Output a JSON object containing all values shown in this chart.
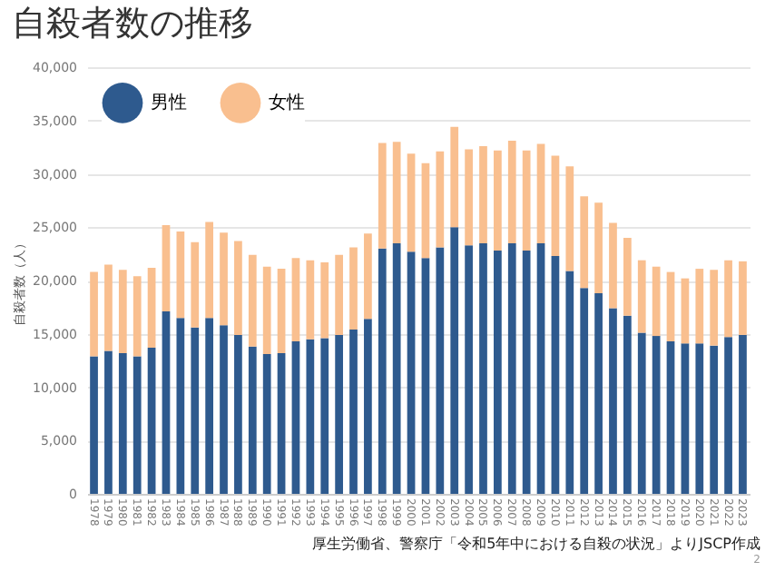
{
  "chart_data": {
    "type": "bar",
    "title": "自殺者数の推移",
    "ylabel": "自殺者数（人）",
    "stacked": true,
    "grid": "y",
    "legend": "top left",
    "categories": [
      "1978",
      "1979",
      "1980",
      "1981",
      "1982",
      "1983",
      "1984",
      "1985",
      "1986",
      "1987",
      "1988",
      "1989",
      "1990",
      "1991",
      "1992",
      "1993",
      "1994",
      "1995",
      "1996",
      "1997",
      "1998",
      "1999",
      "2000",
      "2001",
      "2002",
      "2003",
      "2004",
      "2005",
      "2006",
      "2007",
      "2008",
      "2009",
      "2010",
      "2011",
      "2012",
      "2013",
      "2014",
      "2015",
      "2016",
      "2017",
      "2018",
      "2019",
      "2020",
      "2021",
      "2022",
      "2023"
    ],
    "series": [
      {
        "name": "男性",
        "color": "#2e5a8e",
        "values": [
          12900,
          13400,
          13200,
          12900,
          13700,
          17100,
          16500,
          15600,
          16500,
          15800,
          14900,
          13800,
          13100,
          13200,
          14300,
          14500,
          14600,
          14900,
          15400,
          16400,
          23000,
          23500,
          22700,
          22100,
          23100,
          25000,
          23300,
          23500,
          22800,
          23500,
          22800,
          23500,
          22300,
          20900,
          19300,
          18800,
          17400,
          16700,
          15100,
          14800,
          14300,
          14100,
          14100,
          13900,
          14700,
          14900
        ]
      },
      {
        "name": "女性",
        "color": "#f9bf8f",
        "values": [
          7900,
          8100,
          7800,
          7500,
          7500,
          8100,
          8100,
          8000,
          9000,
          8700,
          8800,
          8600,
          8200,
          7900,
          7800,
          7400,
          7100,
          7500,
          7700,
          8000,
          9900,
          9500,
          9200,
          8900,
          9000,
          9400,
          9000,
          9100,
          9400,
          9600,
          9400,
          9300,
          9400,
          9800,
          8600,
          8500,
          8000,
          7300,
          6800,
          6500,
          6500,
          6100,
          7000,
          7100,
          7200,
          6900
        ]
      }
    ],
    "ylim": [
      0,
      40000
    ],
    "yticks": [
      0,
      {
        "value": 5000,
        "label": "5,000"
      },
      {
        "value": 10000,
        "label": "10,000"
      },
      {
        "value": 15000,
        "label": "15,000"
      },
      {
        "value": 20000,
        "label": "20,000"
      },
      {
        "value": 25000,
        "label": "25,000"
      },
      {
        "value": 30000,
        "label": "30,000"
      },
      {
        "value": 35000,
        "label": "35,000"
      },
      {
        "value": 40000,
        "label": "40,000"
      }
    ],
    "annotations": [
      "厚生労働省、警察庁「令和5年中における自殺の状況」よりJSCP作成",
      "2"
    ]
  }
}
